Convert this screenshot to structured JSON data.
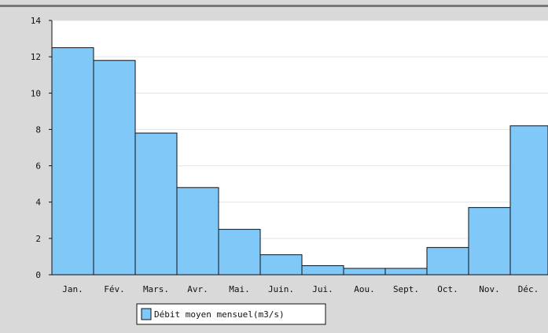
{
  "chart_data": {
    "type": "bar",
    "categories": [
      "Jan.",
      "Fév.",
      "Mars.",
      "Avr.",
      "Mai.",
      "Juin.",
      "Jui.",
      "Aou.",
      "Sept.",
      "Oct.",
      "Nov.",
      "Déc."
    ],
    "series": [
      {
        "name": "Débit moyen mensuel(m3/s)",
        "values": [
          12.5,
          11.8,
          7.8,
          4.8,
          2.5,
          1.1,
          0.5,
          0.35,
          0.35,
          1.5,
          3.7,
          8.2
        ]
      }
    ],
    "ylim": [
      0,
      14
    ],
    "yticks": [
      0,
      2,
      4,
      6,
      8,
      10,
      12,
      14
    ],
    "grid": true,
    "legend_placement": "bottom-left",
    "colors": {
      "bar_fill": "#80c8f8",
      "bar_stroke": "#111111",
      "plot_bg": "#ffffff",
      "frame_bg": "#d9d9d9",
      "grid": "#e4e4e4"
    }
  }
}
